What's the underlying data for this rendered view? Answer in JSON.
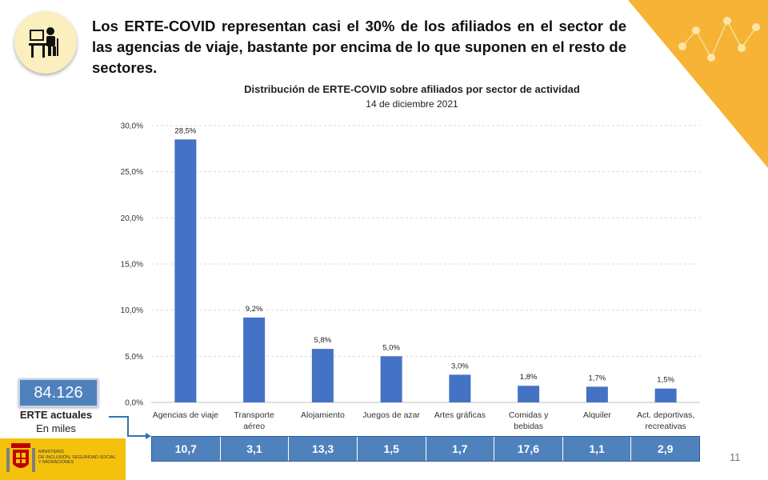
{
  "headline": "Los ERTE-COVID representan casi el 30% de los afiliados en el sector de las agencias de viaje, bastante por encima de lo que suponen en el resto de sectores.",
  "chart_data": {
    "type": "bar",
    "title": "Distribución de ERTE-COVID sobre afiliados por sector de actividad",
    "subtitle": "14 de diciembre 2021",
    "xlabel": "",
    "ylabel": "",
    "categories": [
      [
        "Agencias de viaje"
      ],
      [
        "Transporte",
        "aéreo"
      ],
      [
        "Alojamiento"
      ],
      [
        "Juegos de azar"
      ],
      [
        "Artes gráficas"
      ],
      [
        "Comidas y",
        "bebidas"
      ],
      [
        "Alquiler"
      ],
      [
        "Act. deportivas,",
        "recreativas"
      ]
    ],
    "values": [
      28.5,
      9.2,
      5.8,
      5.0,
      3.0,
      1.8,
      1.7,
      1.5
    ],
    "value_labels": [
      "28,5%",
      "9,2%",
      "5,8%",
      "5,0%",
      "3,0%",
      "1,8%",
      "1,7%",
      "1,5%"
    ],
    "ylim": [
      0,
      30
    ],
    "yticks": [
      "0,0%",
      "5,0%",
      "10,0%",
      "15,0%",
      "20,0%",
      "25,0%",
      "30,0%"
    ],
    "grid": true,
    "bar_color": "#4472c4",
    "grid_color": "#d9d9d9"
  },
  "erte": {
    "total": "84.126",
    "label": "ERTE actuales",
    "unit": "En miles",
    "values": [
      "10,7",
      "3,1",
      "13,3",
      "1,5",
      "1,7",
      "17,6",
      "1,1",
      "2,9"
    ]
  },
  "ministry_logo": {
    "lines": [
      "MINISTERIO",
      "DE INCLUSIÓN, SEGURIDAD SOCIAL",
      "Y MIGRACIONES"
    ]
  },
  "page_number": "11",
  "colors": {
    "accent": "#f6b335",
    "box_blue": "#4f81bd",
    "logo_yellow": "#f4c20d"
  },
  "icons": [
    "person-at-desk-icon",
    "network-nodes-icon",
    "coat-of-arms-icon",
    "connector-arrow-icon"
  ]
}
